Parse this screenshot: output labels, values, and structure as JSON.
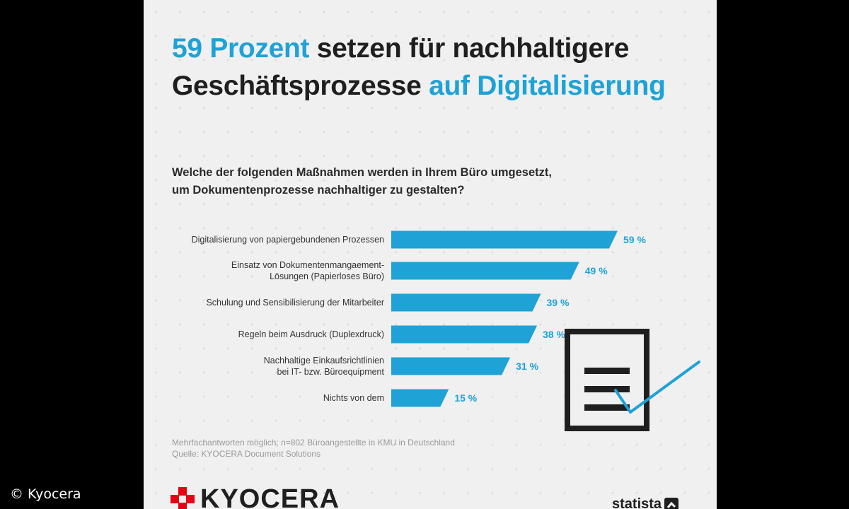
{
  "credit": "© Kyocera",
  "headline": {
    "part1_highlight": "59 Prozent",
    "part2": " setzen für nachhaltigere Geschäftsprozesse ",
    "part3_highlight": "auf Digitalisierung"
  },
  "question": {
    "line1": "Welche der folgenden Maßnahmen werden in Ihrem Büro umgesetzt,",
    "line2": "um Dokumentenprozesse nachhaltiger zu gestalten?"
  },
  "chart_data": {
    "type": "bar",
    "orientation": "horizontal",
    "categories": [
      [
        "Digitalisierung von papiergebundenen Prozessen"
      ],
      [
        "Einsatz von Dokumentenmangaement-",
        "Lösungen (Papierloses Büro)"
      ],
      [
        "Schulung und Sensibilisierung der Mitarbeiter"
      ],
      [
        "Regeln beim Ausdruck (Duplexdruck)"
      ],
      [
        "Nachhaltige Einkaufsrichtlinien",
        "bei IT- bzw. Büroequipment"
      ],
      [
        "Nichts von dem"
      ]
    ],
    "values": [
      59,
      49,
      39,
      38,
      31,
      15
    ],
    "value_labels": [
      "59 %",
      "49 %",
      "39 %",
      "38 %",
      "31 %",
      "15 %"
    ],
    "unit": "%",
    "xlim": [
      0,
      59
    ],
    "grid": false,
    "bar_color": "#1fa2d6"
  },
  "footnote": {
    "line1": "Mehrfachantworten möglich; n=802 Büroangestellte in KMU in Deutschland",
    "line2": "Quelle: KYOCERA Document Solutions"
  },
  "brand": {
    "name": "KYOCERA",
    "color": "#e60012"
  },
  "statista": {
    "name": "statista"
  },
  "icons": [
    "document-check-icon",
    "kyocera-logo-icon",
    "statista-logo-icon"
  ]
}
